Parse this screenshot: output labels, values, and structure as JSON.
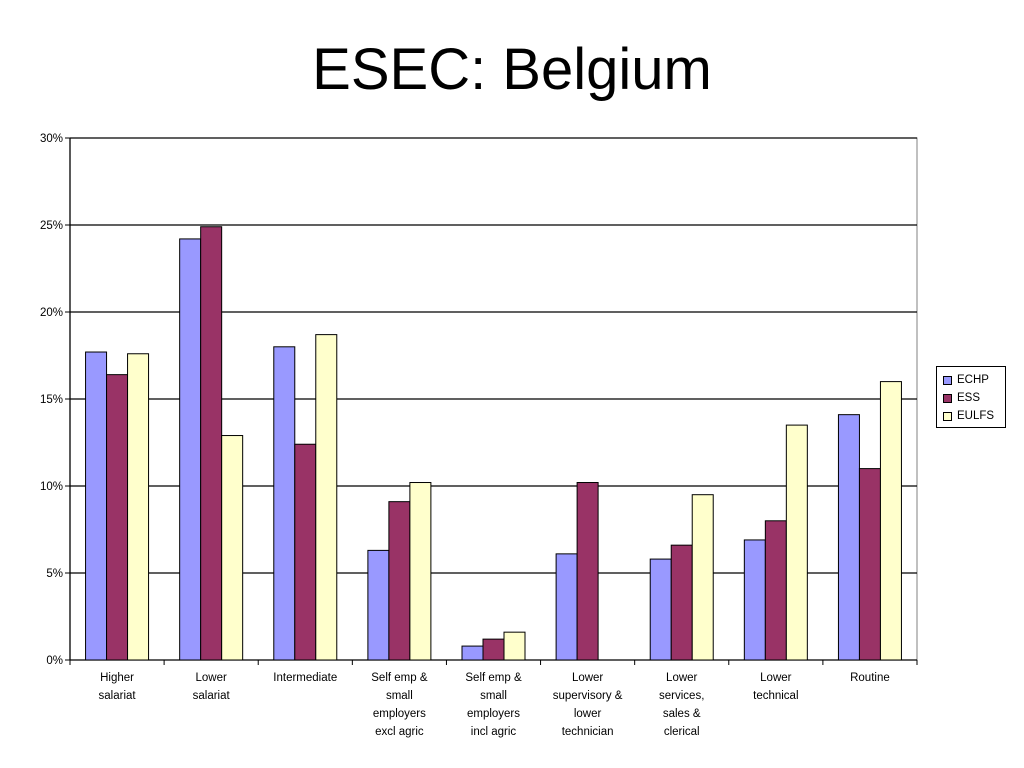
{
  "chart_data": {
    "type": "bar",
    "title": "ESEC: Belgium",
    "categories": [
      [
        "Higher",
        "salariat"
      ],
      [
        "Lower",
        "salariat"
      ],
      [
        "Intermediate"
      ],
      [
        "Self emp &",
        "small",
        "employers",
        "excl agric"
      ],
      [
        "Self emp &",
        "small",
        "employers",
        "incl agric"
      ],
      [
        "Lower",
        "supervisory &",
        "lower",
        "technician"
      ],
      [
        "Lower",
        "services,",
        "sales &",
        "clerical"
      ],
      [
        "Lower",
        "technical"
      ],
      [
        "Routine"
      ]
    ],
    "series": [
      {
        "name": "ECHP",
        "color": "#9999ff",
        "values": [
          17.7,
          24.2,
          18.0,
          6.3,
          0.8,
          6.1,
          5.8,
          6.9,
          14.1
        ]
      },
      {
        "name": "ESS",
        "color": "#993366",
        "values": [
          16.4,
          24.9,
          12.4,
          9.1,
          1.2,
          10.2,
          6.6,
          8.0,
          11.0
        ]
      },
      {
        "name": "EULFS",
        "color": "#ffffcc",
        "values": [
          17.6,
          12.9,
          18.7,
          10.2,
          1.6,
          null,
          9.5,
          13.5,
          16.0
        ]
      }
    ],
    "ylim": [
      0,
      30
    ],
    "yticks": [
      "0%",
      "5%",
      "10%",
      "15%",
      "20%",
      "25%",
      "30%"
    ],
    "grid": true,
    "legend_position": "right"
  }
}
